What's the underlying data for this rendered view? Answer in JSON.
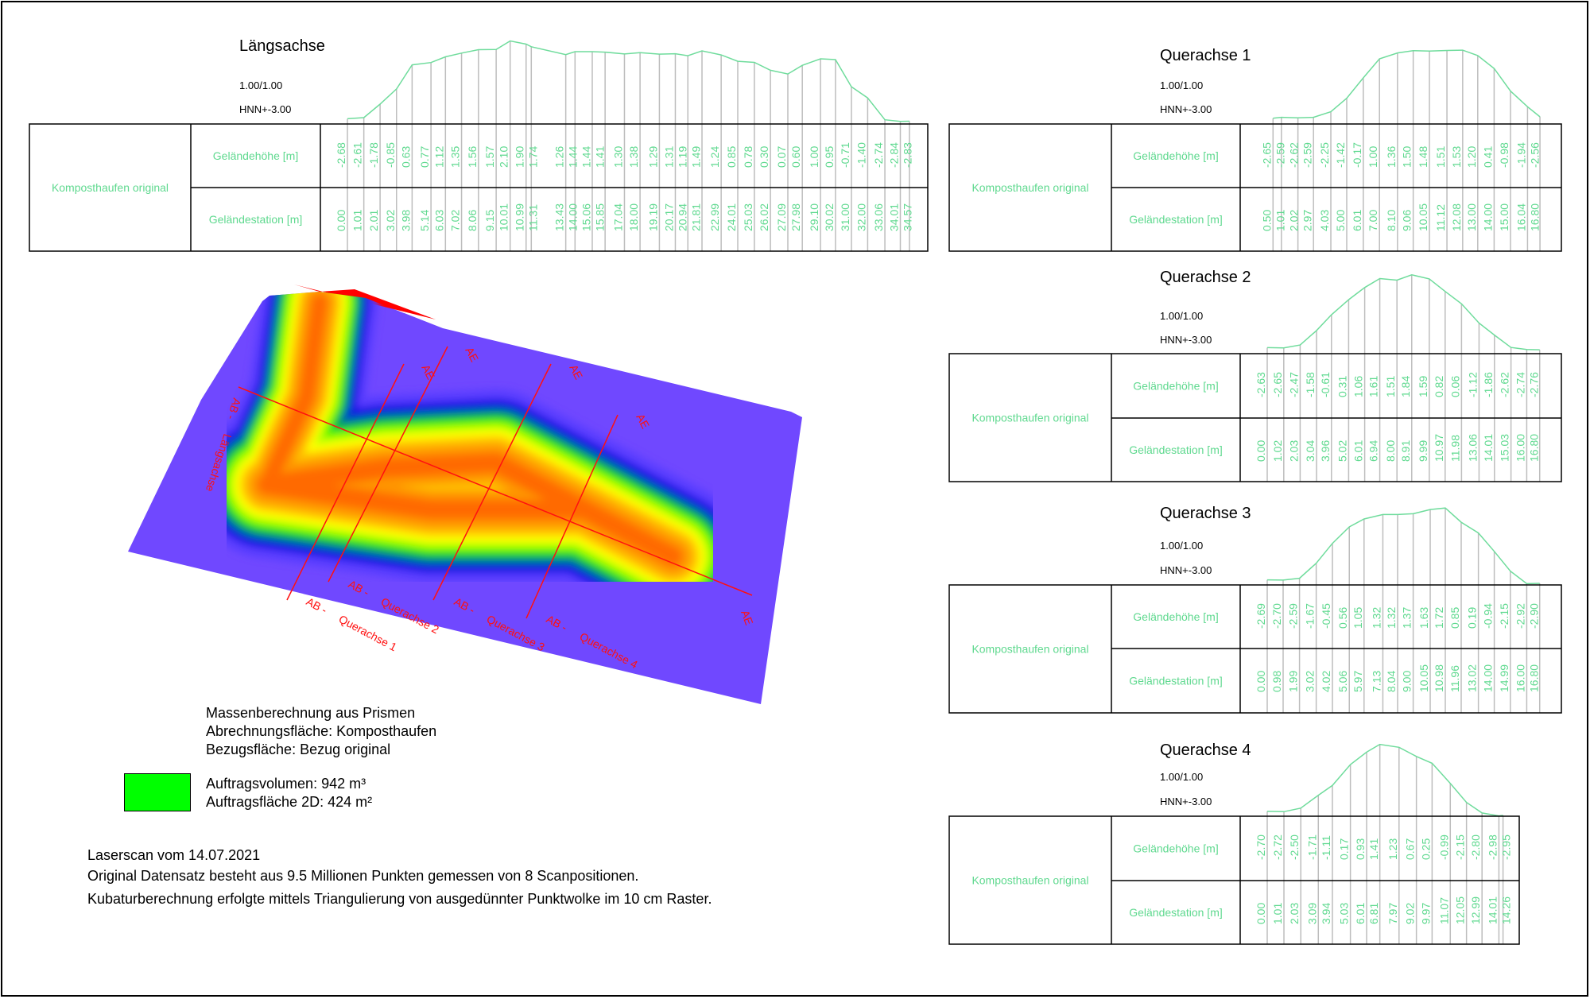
{
  "profiles": [
    {
      "title": "Längsachse",
      "scale": "1.00/1.00",
      "datum": "HNN+-3.00",
      "surface": "Komposthaufen original",
      "row_labels": [
        "Geländehöhe [m]",
        "Geländestation [m]"
      ],
      "heights": [
        "-2.68",
        "-2.61",
        "-1.78",
        "-0.85",
        "0.63",
        "0.77",
        "1.12",
        "1.35",
        "1.56",
        "1.57",
        "2.10",
        "1.90",
        "1.74",
        "1.26",
        "1.44",
        "1.44",
        "1.41",
        "1.30",
        "1.38",
        "1.29",
        "1.31",
        "1.19",
        "1.49",
        "1.24",
        "0.85",
        "0.78",
        "0.30",
        "0.07",
        "0.60",
        "1.00",
        "0.95",
        "-0.71",
        "-1.40",
        "-2.74",
        "-2.84",
        "-2.83"
      ],
      "stations": [
        "0.00",
        "1.01",
        "2.01",
        "3.02",
        "3.98",
        "5.14",
        "6.03",
        "7.02",
        "8.06",
        "9.15",
        "10.01",
        "10.99",
        "11.31",
        "13.43",
        "14.00",
        "15.06",
        "15.85",
        "17.04",
        "18.00",
        "19.19",
        "20.17",
        "20.94",
        "21.81",
        "22.99",
        "24.01",
        "25.03",
        "26.02",
        "27.09",
        "27.98",
        "29.10",
        "30.02",
        "31.00",
        "32.00",
        "33.06",
        "34.01",
        "34.57"
      ]
    },
    {
      "title": "Querachse 1",
      "scale": "1.00/1.00",
      "datum": "HNN+-3.00",
      "surface": "Komposthaufen original",
      "row_labels": [
        "Geländehöhe [m]",
        "Geländestation [m]"
      ],
      "heights": [
        "-2.65",
        "-2.59",
        "-2.62",
        "-2.59",
        "-2.25",
        "-1.42",
        "-0.17",
        "1.00",
        "1.36",
        "1.50",
        "1.48",
        "1.51",
        "1.53",
        "1.20",
        "0.41",
        "-0.98",
        "-1.94",
        "-2.56"
      ],
      "stations": [
        "0.50",
        "1.01",
        "2.02",
        "2.97",
        "4.03",
        "5.00",
        "6.01",
        "7.00",
        "8.10",
        "9.06",
        "10.05",
        "11.12",
        "12.08",
        "13.00",
        "14.00",
        "15.00",
        "16.04",
        "16.80"
      ]
    },
    {
      "title": "Querachse 2",
      "scale": "1.00/1.00",
      "datum": "HNN+-3.00",
      "surface": "Komposthaufen original",
      "row_labels": [
        "Geländehöhe [m]",
        "Geländestation [m]"
      ],
      "heights": [
        "-2.63",
        "-2.65",
        "-2.47",
        "-1.58",
        "-0.61",
        "0.31",
        "1.06",
        "1.61",
        "1.51",
        "1.84",
        "1.59",
        "0.82",
        "0.06",
        "-1.12",
        "-1.86",
        "-2.62",
        "-2.74",
        "-2.76"
      ],
      "stations": [
        "0.00",
        "1.02",
        "2.03",
        "3.04",
        "3.96",
        "5.02",
        "6.01",
        "6.94",
        "8.00",
        "8.91",
        "9.99",
        "10.97",
        "11.98",
        "13.06",
        "14.01",
        "15.03",
        "16.00",
        "16.80"
      ]
    },
    {
      "title": "Querachse 3",
      "scale": "1.00/1.00",
      "datum": "HNN+-3.00",
      "surface": "Komposthaufen original",
      "row_labels": [
        "Geländehöhe [m]",
        "Geländestation [m]"
      ],
      "heights": [
        "-2.69",
        "-2.70",
        "-2.59",
        "-1.67",
        "-0.45",
        "0.56",
        "1.05",
        "1.32",
        "1.32",
        "1.37",
        "1.63",
        "1.72",
        "0.85",
        "0.19",
        "-0.94",
        "-2.15",
        "-2.92",
        "-2.90"
      ],
      "stations": [
        "0.00",
        "0.98",
        "1.99",
        "3.02",
        "4.02",
        "5.06",
        "5.97",
        "7.13",
        "8.04",
        "9.00",
        "10.05",
        "10.98",
        "11.96",
        "13.02",
        "14.00",
        "14.99",
        "16.00",
        "16.80"
      ]
    },
    {
      "title": "Querachse 4",
      "scale": "1.00/1.00",
      "datum": "HNN+-3.00",
      "surface": "Komposthaufen original",
      "row_labels": [
        "Geländehöhe [m]",
        "Geländestation [m]"
      ],
      "heights": [
        "-2.70",
        "-2.72",
        "-2.50",
        "-1.71",
        "-1.11",
        "0.17",
        "0.93",
        "1.41",
        "1.23",
        "0.67",
        "0.25",
        "-0.99",
        "-2.15",
        "-2.80",
        "-2.98",
        "-2.95"
      ],
      "stations": [
        "0.00",
        "1.01",
        "2.03",
        "3.09",
        "3.94",
        "5.03",
        "6.01",
        "6.81",
        "7.97",
        "9.02",
        "9.97",
        "11.07",
        "12.05",
        "12.99",
        "14.01",
        "14.26"
      ]
    }
  ],
  "map": {
    "ab": "AB -",
    "ae": "AE",
    "long_axis": "Längsachse",
    "cross_axes": [
      "Querachse 1",
      "Querachse 2",
      "Querachse 3",
      "Querachse 4"
    ]
  },
  "calculation": {
    "lines": [
      "Massenberechnung aus Prismen",
      "Abrechnungsfläche: Komposthaufen",
      "Bezugsfläche: Bezug original"
    ]
  },
  "legend": {
    "color": "#00ff00",
    "volume": "Auftragsvolumen: 942 m³",
    "area": "Auftragsfläche 2D: 424 m²"
  },
  "notes": [
    "Laserscan vom 14.07.2021",
    "Original Datensatz besteht aus 9.5 Millionen Punkten gemessen von 8 Scanpositionen.",
    "Kubaturberechnung erfolgte mittels Triangulierung von ausgedünnter Punktwolke im 10 cm Raster."
  ],
  "colors": {
    "profile_text": "#5fd98f",
    "axis_lines": "#ff1010",
    "ground": "#7048ff",
    "heat": [
      "#5a3cff",
      "#1010e8",
      "#0040c8",
      "#00a050",
      "#30f000",
      "#b0ff00",
      "#ffff00",
      "#ffc000",
      "#ff9400",
      "#ff6a00"
    ]
  }
}
